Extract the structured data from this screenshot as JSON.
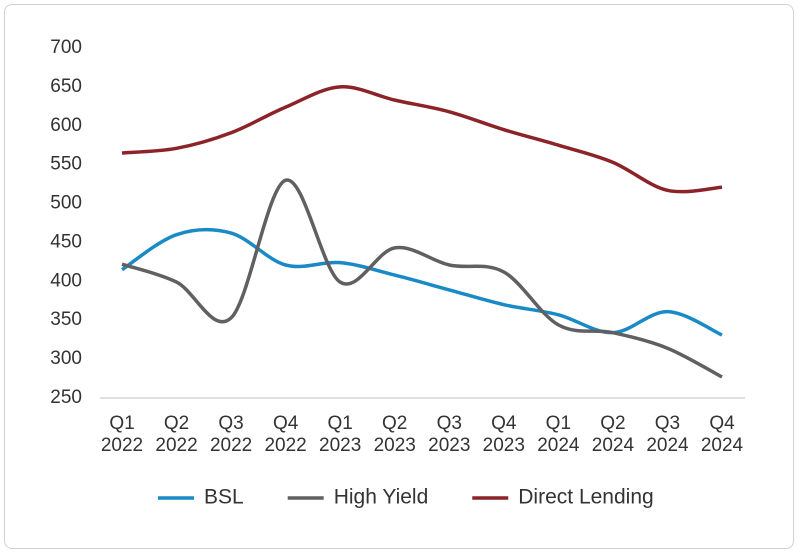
{
  "chart_data": {
    "type": "line",
    "categories": [
      "Q1 2022",
      "Q2 2022",
      "Q3 2022",
      "Q4 2022",
      "Q1 2023",
      "Q2 2023",
      "Q3 2023",
      "Q4 2023",
      "Q1 2024",
      "Q2 2024",
      "Q3 2024",
      "Q4 2024"
    ],
    "series": [
      {
        "name": "BSL",
        "color": "#1a8ac6",
        "values": [
          415,
          460,
          462,
          421,
          424,
          408,
          389,
          370,
          357,
          334,
          361,
          331
        ]
      },
      {
        "name": "High Yield",
        "color": "#606060",
        "values": [
          422,
          399,
          353,
          530,
          399,
          443,
          421,
          412,
          344,
          334,
          314,
          277
        ]
      },
      {
        "name": "Direct Lending",
        "color": "#8b2329",
        "values": [
          565,
          571,
          591,
          624,
          650,
          633,
          618,
          595,
          575,
          553,
          517,
          521
        ]
      }
    ],
    "ylim": [
      250,
      700
    ],
    "yticks": [
      250,
      300,
      350,
      400,
      450,
      500,
      550,
      600,
      650,
      700
    ],
    "grid": false,
    "smooth": true,
    "legend": "bottom"
  }
}
